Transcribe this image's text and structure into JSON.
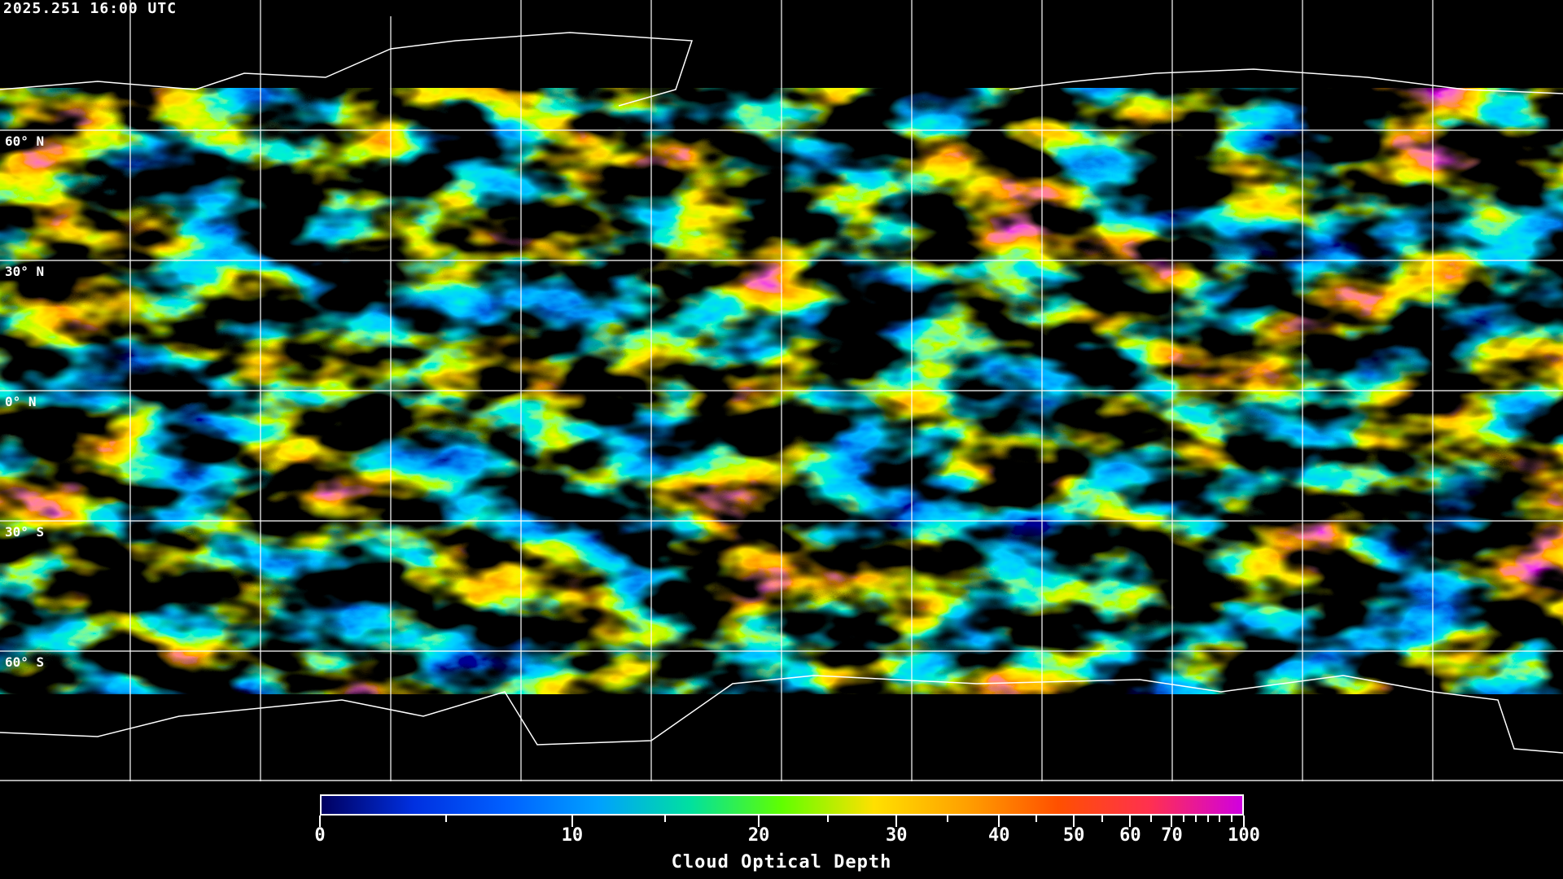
{
  "header": {
    "timestamp": "2025.251 16:00 UTC"
  },
  "map": {
    "projection": "equirectangular",
    "grid_spacing_deg": 30,
    "latitude_labels": [
      "60° N",
      "30° N",
      "0° N",
      "30° S",
      "60° S"
    ],
    "coastline_color": "#ffffff",
    "grid_color": "#ffffff",
    "background_color": "#000000"
  },
  "colorbar": {
    "title": "Cloud Optical Depth",
    "range": [
      0,
      100
    ],
    "tick_labels": [
      "0",
      "10",
      "20",
      "30",
      "40",
      "50",
      "60",
      "70",
      "100"
    ],
    "colors": [
      "#000060",
      "#0030e0",
      "#0060ff",
      "#00a0ff",
      "#00e0a0",
      "#60ff00",
      "#ffe000",
      "#ffa000",
      "#ff5000",
      "#ff3050",
      "#d000e0"
    ]
  }
}
